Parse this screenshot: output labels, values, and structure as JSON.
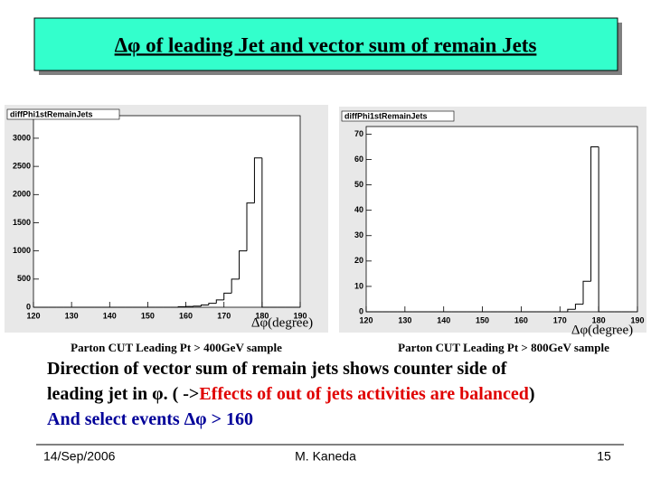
{
  "title": "Δφ of leading Jet and vector sum of remain Jets",
  "body": [
    [
      {
        "text": "Direction of vector sum of remain jets shows counter side of",
        "color": "#000000"
      }
    ],
    [
      {
        "text": "leading jet in φ. ( ->",
        "color": "#000000"
      },
      {
        "text": "Effects of out of jets activities are balanced",
        "color": "#e00000"
      },
      {
        "text": ")",
        "color": "#000000"
      }
    ],
    [
      {
        "text": "And select events Δφ > 160",
        "color": "#000099"
      }
    ]
  ],
  "footer": {
    "date": "14/Sep/2006",
    "author": "M. Kaneda",
    "page": "15"
  },
  "chart_data": [
    {
      "type": "histogram",
      "title": "diffPhi1stRemainJets",
      "x_label": "Δφ(degree)",
      "caption": "Parton CUT  Leading Pt > 400GeV sample",
      "bins": [
        120,
        122,
        124,
        126,
        128,
        130,
        132,
        134,
        136,
        138,
        140,
        142,
        144,
        146,
        148,
        150,
        152,
        154,
        156,
        158,
        160,
        162,
        164,
        166,
        168,
        170,
        172,
        174,
        176,
        178,
        180,
        182,
        184,
        186,
        188,
        190
      ],
      "values": [
        0,
        0,
        0,
        0,
        0,
        0,
        0,
        0,
        0,
        0,
        0,
        0,
        0,
        0,
        0,
        0,
        0,
        0,
        0,
        10,
        15,
        20,
        40,
        70,
        130,
        250,
        500,
        1000,
        1850,
        2650,
        0,
        0,
        0,
        0,
        0
      ],
      "color": "#000000",
      "xlim": [
        120,
        190
      ],
      "ylim": [
        0,
        3400
      ],
      "xticks": [
        120,
        130,
        140,
        150,
        160,
        170,
        180,
        190
      ],
      "yticks": [
        0,
        500,
        1000,
        1500,
        2000,
        2500,
        3000
      ]
    },
    {
      "type": "histogram",
      "title": "diffPhi1stRemainJets",
      "x_label": "Δφ(degree)",
      "caption": "Parton CUT  Leading Pt > 800GeV sample",
      "bins": [
        120,
        122,
        124,
        126,
        128,
        130,
        132,
        134,
        136,
        138,
        140,
        142,
        144,
        146,
        148,
        150,
        152,
        154,
        156,
        158,
        160,
        162,
        164,
        166,
        168,
        170,
        172,
        174,
        176,
        178,
        180,
        182,
        184,
        186,
        188,
        190
      ],
      "values": [
        0,
        0,
        0,
        0,
        0,
        0,
        0,
        0,
        0,
        0,
        0,
        0,
        0,
        0,
        0,
        0,
        0,
        0,
        0,
        0,
        0,
        0,
        0,
        0,
        0,
        0,
        1,
        3,
        12,
        65,
        0,
        0,
        0,
        0,
        0
      ],
      "color": "#000000",
      "xlim": [
        120,
        190
      ],
      "ylim": [
        0,
        73
      ],
      "xticks": [
        120,
        130,
        140,
        150,
        160,
        170,
        180,
        190
      ],
      "yticks": [
        0,
        10,
        20,
        30,
        40,
        50,
        60,
        70
      ]
    }
  ]
}
